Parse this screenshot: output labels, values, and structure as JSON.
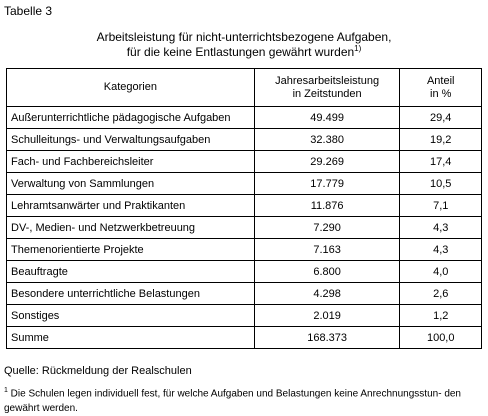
{
  "table_label": "Tabelle 3",
  "title": {
    "line1": "Arbeitsleistung für nicht-unterrichtsbezogene Aufgaben,",
    "line2": "für die keine Entlastungen gewährt wurden",
    "footnote_marker": "1)"
  },
  "table": {
    "headers": {
      "category": "Kategorien",
      "hours_line1": "Jahresarbeitsleistung",
      "hours_line2": "in Zeitstunden",
      "share_line1": "Anteil",
      "share_line2": "in %"
    },
    "rows": [
      {
        "category": "Außerunterrichtliche pädagogische Aufgaben",
        "hours": "49.499",
        "share": "29,4"
      },
      {
        "category": "Schulleitungs- und Verwaltungsaufgaben",
        "hours": "32.380",
        "share": "19,2"
      },
      {
        "category": "Fach- und Fachbereichsleiter",
        "hours": "29.269",
        "share": "17,4"
      },
      {
        "category": "Verwaltung von Sammlungen",
        "hours": "17.779",
        "share": "10,5"
      },
      {
        "category": "Lehramtsanwärter und Praktikanten",
        "hours": "11.876",
        "share": "7,1"
      },
      {
        "category": "DV-, Medien- und Netzwerkbetreuung",
        "hours": "7.290",
        "share": "4,3"
      },
      {
        "category": "Themenorientierte Projekte",
        "hours": "7.163",
        "share": "4,3"
      },
      {
        "category": "Beauftragte",
        "hours": "6.800",
        "share": "4,0"
      },
      {
        "category": "Besondere unterrichtliche Belastungen",
        "hours": "4.298",
        "share": "2,6"
      },
      {
        "category": "Sonstiges",
        "hours": "2.019",
        "share": "1,2"
      },
      {
        "category": "Summe",
        "hours": "168.373",
        "share": "100,0"
      }
    ]
  },
  "source": "Quelle: Rückmeldung der Realschulen",
  "footnote": {
    "marker": "1",
    "text": " Die Schulen legen individuell fest, für welche Aufgaben und Belastungen keine Anrechnungsstun- den gewährt werden."
  }
}
